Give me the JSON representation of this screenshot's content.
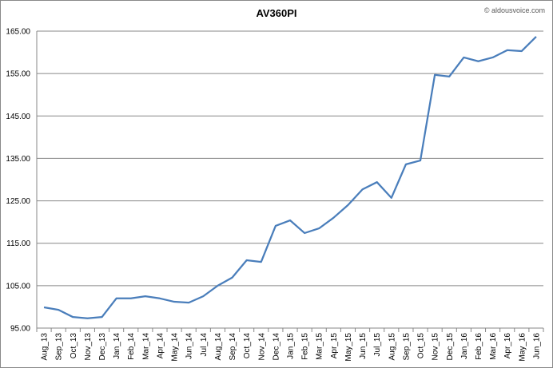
{
  "chart_data": {
    "type": "line",
    "title": "AV360PI",
    "source": "© aldousvoice.com",
    "categories": [
      "Aug_13",
      "Sep_13",
      "Oct_13",
      "Nov_13",
      "Dec_13",
      "Jan_14",
      "Feb_14",
      "Mar_14",
      "Apr_14",
      "May_14",
      "Jun_14",
      "Jul_14",
      "Aug_14",
      "Sep_14",
      "Oct_14",
      "Nov_14",
      "Dec_14",
      "Jan_15",
      "Feb_15",
      "Mar_15",
      "Apr_15",
      "May_15",
      "Jun_15",
      "Jul_15",
      "Aug_15",
      "Sep_15",
      "Oct_15",
      "Nov_15",
      "Dec_15",
      "Jan_16",
      "Feb_16",
      "Mar_16",
      "Apr_16",
      "May_16",
      "Jun_16"
    ],
    "values": [
      99.9,
      99.3,
      97.6,
      97.3,
      97.6,
      102.0,
      102.0,
      102.5,
      102.0,
      101.2,
      101.0,
      102.5,
      105.0,
      106.9,
      111.0,
      110.6,
      119.1,
      120.4,
      117.4,
      118.5,
      121.0,
      124.0,
      127.7,
      129.4,
      125.7,
      133.6,
      134.5,
      154.7,
      154.3,
      158.8,
      157.9,
      158.8,
      160.5,
      160.3,
      163.7
    ],
    "color": "#4a7ebb",
    "ylim": [
      95,
      165
    ],
    "yticks": [
      {
        "value": 95,
        "label": "95.00"
      },
      {
        "value": 105,
        "label": "105.00"
      },
      {
        "value": 115,
        "label": "115.00"
      },
      {
        "value": 125,
        "label": "125.00"
      },
      {
        "value": 135,
        "label": "135.00"
      },
      {
        "value": 145,
        "label": "145.00"
      },
      {
        "value": 155,
        "label": "155.00"
      },
      {
        "value": 165,
        "label": "165.00"
      }
    ],
    "grid": true
  }
}
